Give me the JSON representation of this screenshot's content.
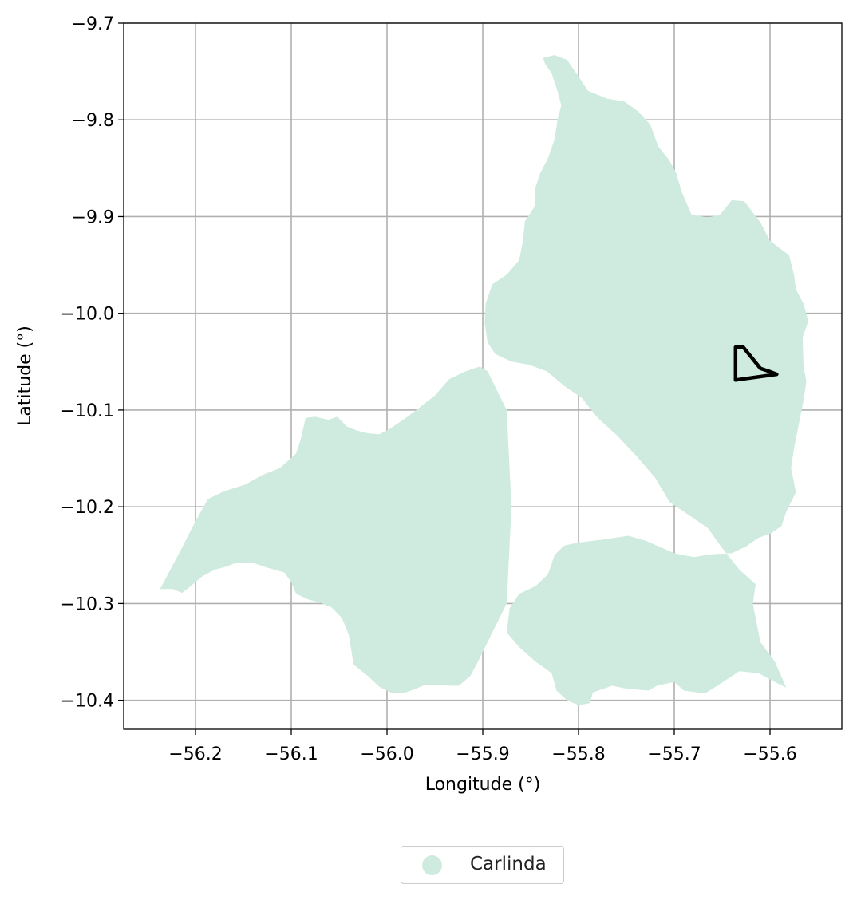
{
  "chart_data": {
    "type": "map",
    "xlabel": "Longitude (°)",
    "ylabel": "Latitude (°)",
    "xlim": [
      -56.275,
      -55.525
    ],
    "ylim": [
      -10.43,
      -9.7
    ],
    "xticks": [
      -56.2,
      -56.1,
      -56.0,
      -55.9,
      -55.8,
      -55.7,
      -55.6
    ],
    "yticks": [
      -9.7,
      -9.8,
      -9.9,
      -10.0,
      -10.1,
      -10.2,
      -10.3,
      -10.4
    ],
    "xtick_labels": [
      "−56.2",
      "−56.1",
      "−56.0",
      "−55.9",
      "−55.8",
      "−55.7",
      "−55.6"
    ],
    "ytick_labels": [
      "−9.7",
      "−9.8",
      "−9.9",
      "−10.0",
      "−10.1",
      "−10.2",
      "−10.3",
      "−10.4"
    ],
    "grid": true,
    "legend_placement": "bottom-center",
    "region": {
      "name": "Carlinda",
      "color": "#cfebdf",
      "boundary": [
        [
          -55.837,
          -9.736
        ],
        [
          -55.825,
          -9.733
        ],
        [
          -55.812,
          -9.738
        ],
        [
          -55.8,
          -9.755
        ],
        [
          -55.79,
          -9.77
        ],
        [
          -55.77,
          -9.778
        ],
        [
          -55.752,
          -9.781
        ],
        [
          -55.738,
          -9.791
        ],
        [
          -55.725,
          -9.805
        ],
        [
          -55.717,
          -9.827
        ],
        [
          -55.705,
          -9.842
        ],
        [
          -55.698,
          -9.855
        ],
        [
          -55.692,
          -9.875
        ],
        [
          -55.682,
          -9.898
        ],
        [
          -55.665,
          -9.901
        ],
        [
          -55.652,
          -9.898
        ],
        [
          -55.64,
          -9.883
        ],
        [
          -55.627,
          -9.884
        ],
        [
          -55.61,
          -9.906
        ],
        [
          -55.6,
          -9.925
        ],
        [
          -55.58,
          -9.94
        ],
        [
          -55.575,
          -9.96
        ],
        [
          -55.573,
          -9.975
        ],
        [
          -55.565,
          -9.99
        ],
        [
          -55.56,
          -10.008
        ],
        [
          -55.566,
          -10.025
        ],
        [
          -55.565,
          -10.055
        ],
        [
          -55.562,
          -10.07
        ],
        [
          -55.565,
          -10.09
        ],
        [
          -55.57,
          -10.115
        ],
        [
          -55.575,
          -10.14
        ],
        [
          -55.578,
          -10.16
        ],
        [
          -55.573,
          -10.185
        ],
        [
          -55.583,
          -10.205
        ],
        [
          -55.588,
          -10.22
        ],
        [
          -55.6,
          -10.228
        ],
        [
          -55.612,
          -10.232
        ],
        [
          -55.625,
          -10.241
        ],
        [
          -55.64,
          -10.248
        ],
        [
          -55.66,
          -10.249
        ],
        [
          -55.68,
          -10.252
        ],
        [
          -55.7,
          -10.248
        ],
        [
          -55.73,
          -10.235
        ],
        [
          -55.748,
          -10.23
        ],
        [
          -55.775,
          -10.234
        ],
        [
          -55.8,
          -10.237
        ],
        [
          -55.815,
          -10.24
        ],
        [
          -55.825,
          -10.25
        ],
        [
          -55.832,
          -10.27
        ],
        [
          -55.845,
          -10.282
        ],
        [
          -55.862,
          -10.29
        ],
        [
          -55.872,
          -10.305
        ],
        [
          -55.875,
          -10.33
        ],
        [
          -55.862,
          -10.345
        ],
        [
          -55.845,
          -10.36
        ],
        [
          -55.828,
          -10.372
        ],
        [
          -55.823,
          -10.39
        ],
        [
          -55.812,
          -10.4
        ],
        [
          -55.8,
          -10.405
        ],
        [
          -55.788,
          -10.403
        ],
        [
          -55.785,
          -10.392
        ],
        [
          -55.765,
          -10.385
        ],
        [
          -55.75,
          -10.388
        ],
        [
          -55.727,
          -10.39
        ],
        [
          -55.718,
          -10.385
        ],
        [
          -55.7,
          -10.381
        ],
        [
          -55.69,
          -10.39
        ],
        [
          -55.668,
          -10.393
        ],
        [
          -55.655,
          -10.385
        ],
        [
          -55.632,
          -10.37
        ],
        [
          -55.612,
          -10.372
        ],
        [
          -55.595,
          -10.381
        ],
        [
          -55.583,
          -10.387
        ],
        [
          -55.595,
          -10.36
        ],
        [
          -55.61,
          -10.34
        ],
        [
          -55.613,
          -10.325
        ],
        [
          -55.618,
          -10.3
        ],
        [
          -55.615,
          -10.28
        ],
        [
          -55.632,
          -10.265
        ],
        [
          -55.652,
          -10.24
        ],
        [
          -55.665,
          -10.222
        ],
        [
          -55.69,
          -10.205
        ],
        [
          -55.705,
          -10.195
        ],
        [
          -55.72,
          -10.17
        ],
        [
          -55.74,
          -10.147
        ],
        [
          -55.76,
          -10.126
        ],
        [
          -55.78,
          -10.108
        ],
        [
          -55.797,
          -10.087
        ],
        [
          -55.815,
          -10.075
        ],
        [
          -55.833,
          -10.06
        ],
        [
          -55.852,
          -10.053
        ],
        [
          -55.87,
          -10.05
        ],
        [
          -55.887,
          -10.042
        ],
        [
          -55.895,
          -10.03
        ],
        [
          -55.898,
          -10.01
        ],
        [
          -55.897,
          -9.99
        ],
        [
          -55.89,
          -9.97
        ],
        [
          -55.875,
          -9.96
        ],
        [
          -55.862,
          -9.945
        ],
        [
          -55.858,
          -9.925
        ],
        [
          -55.856,
          -9.905
        ],
        [
          -55.846,
          -9.89
        ],
        [
          -55.845,
          -9.87
        ],
        [
          -55.84,
          -9.855
        ],
        [
          -55.832,
          -9.84
        ],
        [
          -55.825,
          -9.82
        ],
        [
          -55.822,
          -9.8
        ],
        [
          -55.818,
          -9.785
        ],
        [
          -55.822,
          -9.77
        ],
        [
          -55.828,
          -9.752
        ],
        [
          -55.835,
          -9.742
        ]
      ],
      "hole": [
        [
          -55.939,
          -10.105
        ],
        [
          -55.925,
          -10.108
        ],
        [
          -55.905,
          -10.115
        ],
        [
          -55.885,
          -10.122
        ],
        [
          -55.87,
          -10.128
        ],
        [
          -55.855,
          -10.122
        ],
        [
          -55.838,
          -10.115
        ],
        [
          -55.822,
          -10.115
        ],
        [
          -55.812,
          -10.108
        ],
        [
          -55.795,
          -10.103
        ],
        [
          -55.78,
          -10.108
        ],
        [
          -55.768,
          -10.103
        ],
        [
          -55.75,
          -10.108
        ],
        [
          -55.733,
          -10.108
        ],
        [
          -55.722,
          -10.117
        ],
        [
          -55.705,
          -10.125
        ],
        [
          -55.688,
          -10.124
        ],
        [
          -55.672,
          -10.122
        ],
        [
          -55.655,
          -10.137
        ],
        [
          -55.638,
          -10.145
        ],
        [
          -55.621,
          -10.157
        ],
        [
          -55.607,
          -10.163
        ],
        [
          -55.597,
          -10.17
        ],
        [
          -55.58,
          -10.172
        ],
        [
          -55.567,
          -10.19
        ],
        [
          -55.554,
          -10.203
        ],
        [
          -55.545,
          -10.214
        ],
        [
          -55.532,
          -10.218
        ],
        [
          -55.52,
          -10.23
        ],
        [
          -55.507,
          -10.243
        ],
        [
          -55.495,
          -10.258
        ]
      ],
      "south_lobe": [
        [
          -56.237,
          -10.285
        ],
        [
          -56.215,
          -10.244
        ],
        [
          -56.2,
          -10.215
        ],
        [
          -56.187,
          -10.192
        ],
        [
          -56.17,
          -10.184
        ],
        [
          -56.148,
          -10.177
        ],
        [
          -56.13,
          -10.167
        ],
        [
          -56.112,
          -10.16
        ],
        [
          -56.095,
          -10.145
        ],
        [
          -56.09,
          -10.13
        ],
        [
          -56.085,
          -10.108
        ],
        [
          -56.075,
          -10.107
        ],
        [
          -56.061,
          -10.11
        ],
        [
          -56.052,
          -10.107
        ],
        [
          -56.042,
          -10.117
        ],
        [
          -56.032,
          -10.121
        ],
        [
          -56.02,
          -10.124
        ],
        [
          -56.008,
          -10.125
        ],
        [
          -55.998,
          -10.12
        ],
        [
          -55.98,
          -10.108
        ],
        [
          -55.963,
          -10.095
        ],
        [
          -55.95,
          -10.085
        ],
        [
          -55.935,
          -10.068
        ],
        [
          -55.918,
          -10.06
        ],
        [
          -55.903,
          -10.055
        ]
      ],
      "south_coast": [
        [
          -56.237,
          -10.285
        ],
        [
          -56.224,
          -10.285
        ],
        [
          -56.214,
          -10.289
        ],
        [
          -56.205,
          -10.282
        ],
        [
          -56.193,
          -10.272
        ],
        [
          -56.18,
          -10.265
        ],
        [
          -56.168,
          -10.262
        ],
        [
          -56.158,
          -10.258
        ],
        [
          -56.14,
          -10.258
        ],
        [
          -56.125,
          -10.263
        ],
        [
          -56.107,
          -10.268
        ],
        [
          -56.1,
          -10.278
        ],
        [
          -56.095,
          -10.29
        ],
        [
          -56.082,
          -10.296
        ],
        [
          -56.07,
          -10.299
        ],
        [
          -56.058,
          -10.304
        ],
        [
          -56.047,
          -10.315
        ],
        [
          -56.04,
          -10.332
        ],
        [
          -56.037,
          -10.35
        ],
        [
          -56.035,
          -10.363
        ],
        [
          -56.03,
          -10.367
        ],
        [
          -56.02,
          -10.375
        ],
        [
          -56.008,
          -10.386
        ],
        [
          -55.996,
          -10.392
        ],
        [
          -55.984,
          -10.393
        ],
        [
          -55.972,
          -10.389
        ],
        [
          -55.96,
          -10.384
        ],
        [
          -55.948,
          -10.384
        ],
        [
          -55.935,
          -10.385
        ],
        [
          -55.925,
          -10.385
        ],
        [
          -55.913,
          -10.375
        ],
        [
          -55.905,
          -10.36
        ]
      ],
      "outline_style": "none"
    },
    "marked_area": {
      "boundary": [
        [
          -55.636,
          -10.035
        ],
        [
          -55.628,
          -10.035
        ],
        [
          -55.61,
          -10.057
        ],
        [
          -55.601,
          -10.06
        ],
        [
          -55.593,
          -10.063
        ],
        [
          -55.636,
          -10.069
        ]
      ],
      "color": "#000000"
    }
  },
  "legend": {
    "label": "Carlinda",
    "swatch_color": "#cfebdf"
  }
}
